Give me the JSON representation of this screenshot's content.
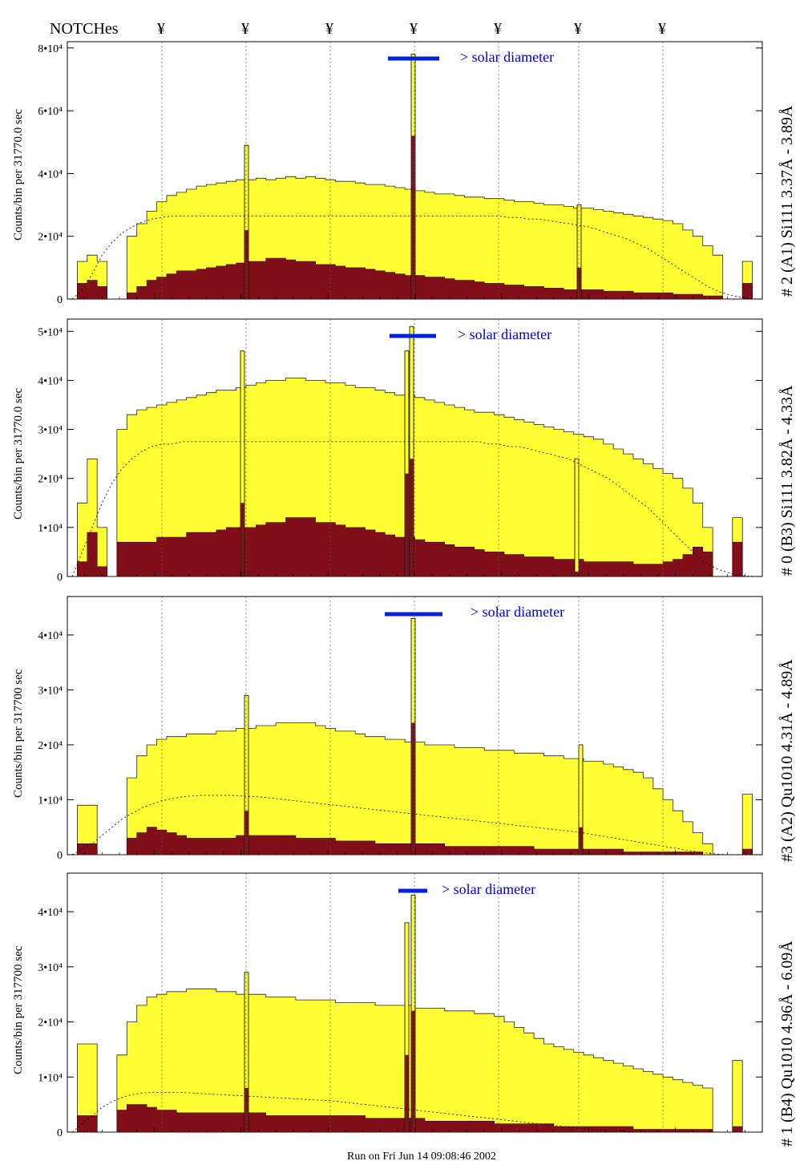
{
  "header": {
    "notches_label": "NOTCHes",
    "notch_symbol": "¥",
    "notch_x": [
      202,
      307,
      412,
      517,
      622,
      722,
      827
    ]
  },
  "footer": {
    "run_text": "Run on Fri Jun 14 09:08:46 2002"
  },
  "colors": {
    "fill_total": "#ffff33",
    "fill_inner": "#800f1a",
    "bar": "#0022dd",
    "annotation": "#0000cc"
  },
  "chart_data": [
    {
      "type": "area",
      "panel_label": "# 2 (A1) Si111  3.37Å - 3.89Å",
      "ylabel": "Counts/bin per  31770.0 sec",
      "ytick_labels": [
        "0",
        "2•10⁴",
        "4•10⁴",
        "6•10⁴",
        "8•10⁴"
      ],
      "ytick_values": [
        0,
        20000,
        40000,
        60000,
        80000
      ],
      "ylim": [
        0,
        82000
      ],
      "solar_label": "> solar diameter",
      "series": [
        {
          "values": [
            0,
            12000,
            14000,
            12000,
            0,
            0,
            20000,
            24000,
            28000,
            31000,
            33000,
            34000,
            35000,
            36000,
            36500,
            37000,
            37500,
            38000,
            38000,
            38500,
            38000,
            38500,
            39000,
            38500,
            39000,
            38500,
            38000,
            37500,
            37500,
            37000,
            36500,
            36500,
            36000,
            35500,
            35000,
            34500,
            34000,
            33500,
            33500,
            33000,
            32500,
            32500,
            32000,
            32000,
            31500,
            31000,
            31000,
            30500,
            30000,
            30000,
            29500,
            29000,
            29000,
            28500,
            28000,
            27500,
            27000,
            26500,
            26000,
            25500,
            25000,
            24000,
            22000,
            20000,
            17000,
            14000,
            0,
            0,
            12000,
            0
          ]
        },
        {
          "values": [
            0,
            5000,
            6000,
            4000,
            0,
            0,
            2000,
            4000,
            6000,
            7000,
            8000,
            9000,
            9000,
            9500,
            10000,
            10500,
            11000,
            11500,
            12000,
            12000,
            13000,
            13000,
            12500,
            12000,
            12000,
            11000,
            11000,
            10500,
            10000,
            10000,
            9500,
            9000,
            8500,
            8000,
            7500,
            7500,
            7000,
            7000,
            6500,
            6000,
            6000,
            5500,
            5000,
            5000,
            4500,
            4500,
            4000,
            4000,
            3500,
            3500,
            3000,
            3000,
            3000,
            3000,
            2500,
            2500,
            2500,
            2000,
            2000,
            2000,
            2000,
            1500,
            1500,
            1500,
            1000,
            1000,
            0,
            0,
            5000,
            0
          ]
        },
        {
          "values": [
            0,
            3000,
            8000,
            14000,
            18000,
            21000,
            23000,
            24500,
            25500,
            26000,
            26500,
            26500,
            26500,
            26500,
            26500,
            26500,
            26500,
            26500,
            26500,
            26500,
            26500,
            26500,
            26500,
            26500,
            26500,
            26500,
            26500,
            26500,
            26500,
            26500,
            26500,
            26500,
            26500,
            26500,
            26500,
            26500,
            26500,
            26500,
            26500,
            26500,
            26500,
            26500,
            26500,
            26500,
            26000,
            26000,
            25500,
            25500,
            25000,
            24500,
            24000,
            23500,
            23000,
            22000,
            21000,
            20000,
            19000,
            17500,
            16000,
            14000,
            12000,
            10000,
            8000,
            6000,
            4000,
            2500,
            1500,
            800,
            300,
            0
          ]
        }
      ],
      "spikes": [
        {
          "bin_x": 307,
          "total": 49000,
          "inner": 22000
        },
        {
          "bin_x": 515,
          "total": 78000,
          "inner": 52000
        },
        {
          "bin_x": 722,
          "total": 30000,
          "inner": 10000
        }
      ]
    },
    {
      "type": "area",
      "panel_label": "# 0 (B3) Si111  3.82Å - 4.33Å",
      "ylabel": "Counts/bin per  31770.0 sec",
      "ytick_labels": [
        "0",
        "1•10⁴",
        "2•10⁴",
        "3•10⁴",
        "4•10⁴",
        "5•10⁴"
      ],
      "ytick_values": [
        0,
        10000,
        20000,
        30000,
        40000,
        50000
      ],
      "ylim": [
        0,
        52500
      ],
      "solar_label": "> solar diameter",
      "series": [
        {
          "values": [
            0,
            15000,
            24000,
            10000,
            0,
            30000,
            33000,
            34000,
            34500,
            35000,
            35500,
            36000,
            36500,
            37000,
            37500,
            38000,
            38000,
            38500,
            39000,
            39500,
            40000,
            40000,
            40500,
            40500,
            40000,
            40000,
            39500,
            39500,
            39000,
            38500,
            38500,
            38000,
            37500,
            37000,
            37000,
            36500,
            36000,
            35500,
            35000,
            34500,
            34000,
            33500,
            33500,
            33000,
            32500,
            32000,
            31500,
            31000,
            30500,
            30000,
            29500,
            29000,
            28500,
            28000,
            27000,
            26000,
            25000,
            24000,
            23000,
            22000,
            21000,
            20000,
            18000,
            15000,
            10000,
            0,
            0,
            12000,
            0,
            0
          ]
        },
        {
          "values": [
            0,
            3000,
            9000,
            2000,
            0,
            7000,
            7000,
            7000,
            7000,
            8000,
            8000,
            8000,
            9000,
            9000,
            9000,
            9500,
            10000,
            10000,
            10000,
            10500,
            11000,
            11000,
            12000,
            12000,
            12000,
            11000,
            11000,
            10500,
            10000,
            10000,
            9500,
            9000,
            8500,
            8000,
            8000,
            7500,
            7000,
            7000,
            6500,
            6000,
            6000,
            5500,
            5000,
            5000,
            4500,
            4500,
            4000,
            4000,
            4000,
            3500,
            3500,
            3500,
            3000,
            3000,
            3000,
            3000,
            3000,
            2500,
            2500,
            2500,
            3000,
            3500,
            4500,
            6000,
            5000,
            0,
            0,
            7000,
            0,
            0
          ]
        },
        {
          "values": [
            0,
            5000,
            10000,
            15000,
            19000,
            22000,
            24000,
            25500,
            26500,
            27000,
            27000,
            27500,
            27500,
            27500,
            27500,
            27500,
            27500,
            27500,
            27500,
            27500,
            27500,
            27500,
            27500,
            27500,
            27500,
            27500,
            27500,
            27500,
            27500,
            27500,
            27500,
            27500,
            27500,
            27500,
            27500,
            27500,
            27500,
            27500,
            27500,
            27500,
            27500,
            27500,
            27000,
            27000,
            26500,
            26500,
            26000,
            25500,
            25000,
            24500,
            24000,
            23000,
            22000,
            21000,
            20000,
            18500,
            17000,
            15500,
            14000,
            12000,
            10000,
            8000,
            6000,
            4000,
            2500,
            1500,
            800,
            300,
            100,
            0
          ]
        }
      ],
      "spikes": [
        {
          "bin_x": 302,
          "total": 46000,
          "inner": 15000
        },
        {
          "bin_x": 507,
          "total": 46000,
          "inner": 21000
        },
        {
          "bin_x": 513,
          "total": 51000,
          "inner": 24000
        },
        {
          "bin_x": 719,
          "total": 24000,
          "inner": 1000
        }
      ]
    },
    {
      "type": "area",
      "panel_label": "#3 (A2) Qu1010  4.31Å - 4.89Å",
      "ylabel": "Counts/bin per  317700 sec",
      "ytick_labels": [
        "0",
        "1•10⁴",
        "2•10⁴",
        "3•10⁴",
        "4•10⁴"
      ],
      "ytick_values": [
        0,
        10000,
        20000,
        30000,
        40000
      ],
      "ylim": [
        0,
        47000
      ],
      "solar_label": "> solar diameter",
      "series": [
        {
          "values": [
            0,
            9000,
            9000,
            0,
            0,
            0,
            14000,
            18000,
            20000,
            21000,
            21500,
            21500,
            22000,
            22000,
            22000,
            22500,
            22500,
            23000,
            23000,
            23500,
            23500,
            24000,
            24000,
            24000,
            24000,
            23500,
            23000,
            22500,
            22500,
            22000,
            21500,
            21500,
            21000,
            21000,
            20500,
            20500,
            20000,
            20000,
            20000,
            19500,
            19500,
            19500,
            19000,
            19000,
            19000,
            18500,
            18500,
            18500,
            18000,
            18000,
            17500,
            17500,
            17000,
            17000,
            16500,
            16000,
            15500,
            15000,
            14000,
            12000,
            10000,
            8000,
            6000,
            4000,
            2000,
            0,
            0,
            0,
            11000,
            0
          ]
        },
        {
          "values": [
            0,
            2000,
            2000,
            0,
            0,
            0,
            3000,
            4000,
            5000,
            4500,
            4000,
            3500,
            3000,
            3000,
            3000,
            3000,
            3000,
            3500,
            3500,
            3500,
            3500,
            3500,
            3500,
            3000,
            3000,
            3000,
            3000,
            2500,
            2500,
            2500,
            2500,
            2000,
            2000,
            2000,
            2000,
            2000,
            2000,
            2000,
            1500,
            1500,
            1500,
            1500,
            1500,
            1500,
            1500,
            1500,
            1500,
            1000,
            1000,
            1000,
            1000,
            1000,
            1000,
            1000,
            1000,
            1000,
            500,
            500,
            500,
            500,
            500,
            500,
            500,
            500,
            0,
            0,
            0,
            0,
            1000,
            0
          ]
        },
        {
          "values": [
            0,
            1000,
            2000,
            3500,
            5000,
            6500,
            7500,
            8500,
            9200,
            9800,
            10200,
            10500,
            10700,
            10800,
            10800,
            10800,
            10800,
            10700,
            10600,
            10500,
            10300,
            10100,
            9900,
            9700,
            9500,
            9300,
            9100,
            8900,
            8700,
            8500,
            8300,
            8100,
            7900,
            7700,
            7500,
            7300,
            7100,
            6900,
            6700,
            6500,
            6300,
            6100,
            5900,
            5700,
            5500,
            5300,
            5100,
            4900,
            4700,
            4500,
            4300,
            4100,
            3800,
            3500,
            3200,
            2900,
            2600,
            2300,
            2000,
            1700,
            1400,
            1100,
            800,
            500,
            300,
            100,
            0,
            0,
            0,
            0
          ]
        }
      ],
      "spikes": [
        {
          "bin_x": 307,
          "total": 29000,
          "inner": 8000
        },
        {
          "bin_x": 515,
          "total": 43000,
          "inner": 24000
        },
        {
          "bin_x": 724,
          "total": 20000,
          "inner": 5000
        }
      ]
    },
    {
      "type": "area",
      "panel_label": "# 1 (B4) Qu1010 4.96Å - 6.09Å",
      "ylabel": "Counts/bin per  317700 sec",
      "ytick_labels": [
        "0",
        "1•10⁴",
        "2•10⁴",
        "3•10⁴",
        "4•10⁴"
      ],
      "ytick_values": [
        0,
        10000,
        20000,
        30000,
        40000
      ],
      "ylim": [
        0,
        47000
      ],
      "solar_label": "> solar diameter",
      "series": [
        {
          "values": [
            0,
            16000,
            16000,
            0,
            0,
            14000,
            20000,
            23000,
            24500,
            25000,
            25500,
            25500,
            26000,
            26000,
            26000,
            25500,
            25500,
            25000,
            25000,
            25000,
            24500,
            24500,
            24500,
            24000,
            24000,
            24000,
            24000,
            23500,
            23500,
            23500,
            23500,
            23000,
            23000,
            23000,
            23000,
            22500,
            22500,
            22500,
            22000,
            22000,
            22000,
            21500,
            21500,
            21000,
            20000,
            19000,
            18000,
            17000,
            16000,
            15500,
            15000,
            14500,
            14000,
            13500,
            13000,
            12500,
            12000,
            11500,
            11000,
            10500,
            10000,
            9500,
            9000,
            8500,
            8000,
            0,
            0,
            13000,
            0,
            0
          ]
        },
        {
          "values": [
            0,
            3000,
            3000,
            0,
            0,
            4000,
            5000,
            5000,
            4500,
            4000,
            4000,
            3500,
            3500,
            3500,
            3500,
            3500,
            3500,
            3500,
            3500,
            3500,
            3000,
            3000,
            3000,
            3000,
            3000,
            3000,
            3000,
            3000,
            3000,
            3000,
            2500,
            2500,
            2500,
            2500,
            2500,
            2500,
            2000,
            2000,
            2000,
            2000,
            2000,
            2000,
            2000,
            1500,
            1500,
            1500,
            1500,
            1500,
            1500,
            1000,
            1000,
            1000,
            1000,
            1000,
            1000,
            1000,
            1000,
            500,
            500,
            500,
            500,
            500,
            500,
            500,
            500,
            0,
            0,
            1000,
            0,
            0
          ]
        },
        {
          "values": [
            0,
            1500,
            3000,
            4500,
            5500,
            6300,
            6800,
            7100,
            7200,
            7200,
            7200,
            7200,
            7100,
            7000,
            6900,
            6800,
            6700,
            6600,
            6500,
            6400,
            6300,
            6200,
            6100,
            6000,
            5900,
            5800,
            5700,
            5500,
            5300,
            5100,
            4900,
            4700,
            4500,
            4300,
            4100,
            3900,
            3700,
            3500,
            3300,
            3100,
            2900,
            2700,
            2500,
            2300,
            2100,
            1900,
            1700,
            1500,
            1300,
            1100,
            900,
            700,
            500,
            400,
            300,
            200,
            100,
            0,
            0,
            0,
            0,
            0,
            0,
            0,
            0,
            0,
            0,
            0,
            0,
            0
          ]
        }
      ],
      "spikes": [
        {
          "bin_x": 307,
          "total": 29000,
          "inner": 8000
        },
        {
          "bin_x": 515,
          "total": 43000,
          "inner": 22000
        },
        {
          "bin_x": 507,
          "total": 38000,
          "inner": 14000
        }
      ]
    }
  ]
}
